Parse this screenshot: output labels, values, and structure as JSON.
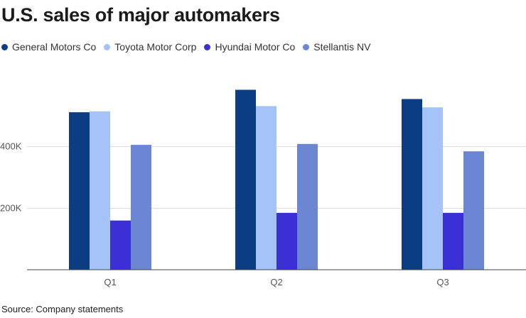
{
  "chart_data": {
    "type": "bar",
    "title": "U.S. sales of major automakers",
    "categories": [
      "Q1",
      "Q2",
      "Q3"
    ],
    "series": [
      {
        "name": "General Motors Co",
        "color": "#0b3d82",
        "values": [
          512000,
          585000,
          555000
        ]
      },
      {
        "name": "Toyota Motor Corp",
        "color": "#a6c3f7",
        "values": [
          515000,
          532000,
          528000
        ]
      },
      {
        "name": "Hyundai Motor Co",
        "color": "#3b2fd6",
        "values": [
          160000,
          185000,
          185000
        ]
      },
      {
        "name": "Stellantis NV",
        "color": "#6b87d4",
        "values": [
          406000,
          409000,
          385000
        ]
      }
    ],
    "yticks": [
      200000,
      400000
    ],
    "ytick_labels": [
      "200K",
      "400K"
    ],
    "ylim": [
      0,
      600000
    ],
    "xlabel": "",
    "ylabel": "",
    "grid": true,
    "legend": "top-left"
  },
  "source": "Source: Company statements"
}
